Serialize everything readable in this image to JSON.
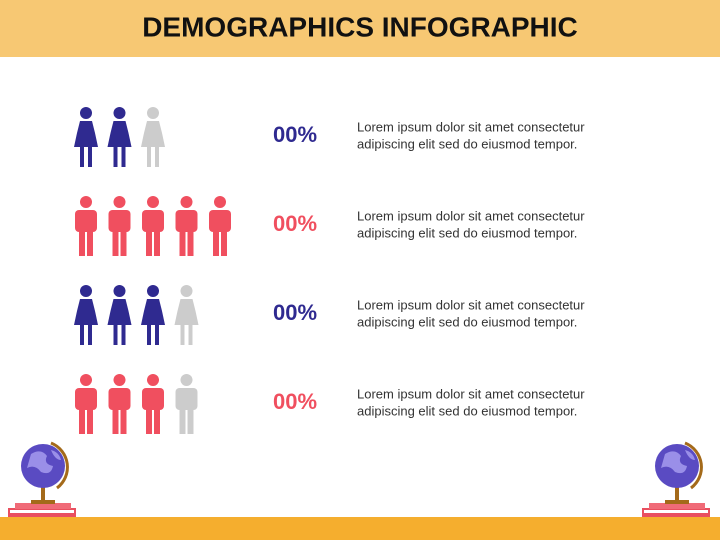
{
  "header": {
    "title": "DEMOGRAPHICS INFOGRAPHIC"
  },
  "rows": [
    {
      "icon": "female",
      "color": "#2f2a90",
      "filled": 2,
      "total": 3,
      "percent": "00%",
      "lines": [
        "Lorem ipsum dolor sit amet consectetur",
        "adipiscing elit sed do eiusmod tempor."
      ]
    },
    {
      "icon": "male",
      "color": "#f04f5f",
      "filled": 5,
      "total": 5,
      "percent": "00%",
      "lines": [
        "Lorem ipsum dolor sit amet consectetur",
        "adipiscing elit sed do eiusmod tempor."
      ]
    },
    {
      "icon": "female",
      "color": "#2f2a90",
      "filled": 3,
      "total": 4,
      "percent": "00%",
      "lines": [
        "Lorem ipsum dolor sit amet consectetur",
        "adipiscing elit sed do eiusmod tempor."
      ]
    },
    {
      "icon": "male",
      "color": "#f04f5f",
      "filled": 3,
      "total": 4,
      "percent": "00%",
      "lines": [
        "Lorem ipsum dolor sit amet consectetur",
        "adipiscing elit sed do eiusmod tempor."
      ]
    }
  ],
  "empty_color": "#cccccc"
}
